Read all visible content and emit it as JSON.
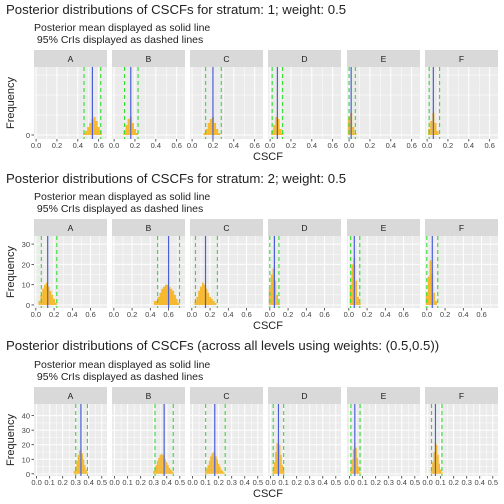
{
  "colors": {
    "panel_bg": "#ebebeb",
    "strip_bg": "#d9d9d9",
    "grid": "#ffffff",
    "bar": "#f5b82e",
    "mean_line": "#4a5fd6",
    "cri_line": "#33dd33",
    "text": "#222222",
    "tick_text": "#444444"
  },
  "chart_data": [
    {
      "type": "bar",
      "title": "Posterior distributions of CSCFs for stratum: 1; weight: 0.5",
      "subtitle_lines": [
        "Posterior mean displayed as solid line",
        " 95% CrIs displayed as dashed lines"
      ],
      "xlabel": "CSCF",
      "ylabel": "Frequency",
      "xlim": [
        -0.02,
        0.68
      ],
      "ylim": [
        -2,
        34
      ],
      "x_ticks": [
        "0.0",
        "0.2",
        "0.4",
        "0.6"
      ],
      "x_tick_values": [
        0.0,
        0.2,
        0.4,
        0.6
      ],
      "y_ticks": [
        "0"
      ],
      "y_tick_values": [
        0
      ],
      "y_minor_grid": [
        10,
        20,
        30
      ],
      "facets": [
        {
          "label": "A",
          "mean": 0.54,
          "cri": [
            0.46,
            0.62
          ],
          "bins": [
            [
              0.46,
              1
            ],
            [
              0.48,
              2
            ],
            [
              0.5,
              4
            ],
            [
              0.52,
              6
            ],
            [
              0.54,
              8
            ],
            [
              0.56,
              9
            ],
            [
              0.58,
              7
            ],
            [
              0.6,
              4
            ],
            [
              0.62,
              2
            ]
          ]
        },
        {
          "label": "B",
          "mean": 0.16,
          "cri": [
            0.1,
            0.23
          ],
          "bins": [
            [
              0.1,
              2
            ],
            [
              0.12,
              5
            ],
            [
              0.14,
              8
            ],
            [
              0.16,
              9
            ],
            [
              0.18,
              6
            ],
            [
              0.2,
              3
            ],
            [
              0.22,
              1
            ]
          ]
        },
        {
          "label": "C",
          "mean": 0.2,
          "cri": [
            0.13,
            0.28
          ],
          "bins": [
            [
              0.12,
              1
            ],
            [
              0.14,
              3
            ],
            [
              0.16,
              6
            ],
            [
              0.18,
              8
            ],
            [
              0.2,
              9
            ],
            [
              0.22,
              6
            ],
            [
              0.24,
              3
            ],
            [
              0.26,
              1
            ]
          ]
        },
        {
          "label": "D",
          "mean": 0.07,
          "cri": [
            0.02,
            0.12
          ],
          "bins": [
            [
              0.02,
              2
            ],
            [
              0.04,
              5
            ],
            [
              0.06,
              9
            ],
            [
              0.08,
              8
            ],
            [
              0.1,
              3
            ],
            [
              0.12,
              1
            ]
          ]
        },
        {
          "label": "E",
          "mean": 0.02,
          "cri": [
            0.0,
            0.06
          ],
          "bins": [
            [
              0.0,
              9
            ],
            [
              0.02,
              11
            ],
            [
              0.04,
              4
            ],
            [
              0.06,
              1
            ]
          ]
        },
        {
          "label": "F",
          "mean": 0.06,
          "cri": [
            0.02,
            0.12
          ],
          "bins": [
            [
              0.02,
              3
            ],
            [
              0.04,
              7
            ],
            [
              0.06,
              11
            ],
            [
              0.08,
              6
            ],
            [
              0.1,
              2
            ]
          ]
        }
      ]
    },
    {
      "type": "bar",
      "title": "Posterior distributions of CSCFs for stratum: 2; weight: 0.5",
      "subtitle_lines": [
        "Posterior mean displayed as solid line",
        " 95% CrIs displayed as dashed lines"
      ],
      "xlabel": "CSCF",
      "ylabel": "Frequency",
      "xlim": [
        -0.02,
        0.78
      ],
      "ylim": [
        -1.5,
        34
      ],
      "x_ticks": [
        "0.0",
        "0.2",
        "0.4",
        "0.6"
      ],
      "x_tick_values": [
        0.0,
        0.2,
        0.4,
        0.6
      ],
      "y_ticks": [
        "0",
        "10",
        "20",
        "30"
      ],
      "y_tick_values": [
        0,
        10,
        20,
        30
      ],
      "y_minor_grid": [],
      "facets": [
        {
          "label": "A",
          "mean": 0.13,
          "cri": [
            0.06,
            0.23
          ],
          "bins": [
            [
              0.04,
              2
            ],
            [
              0.06,
              5
            ],
            [
              0.08,
              8
            ],
            [
              0.1,
              10
            ],
            [
              0.12,
              11
            ],
            [
              0.14,
              9
            ],
            [
              0.16,
              7
            ],
            [
              0.18,
              5
            ],
            [
              0.2,
              3
            ],
            [
              0.22,
              1
            ]
          ]
        },
        {
          "label": "B",
          "mean": 0.6,
          "cri": [
            0.48,
            0.72
          ],
          "bins": [
            [
              0.46,
              2
            ],
            [
              0.5,
              4
            ],
            [
              0.52,
              6
            ],
            [
              0.54,
              8
            ],
            [
              0.56,
              9
            ],
            [
              0.58,
              10
            ],
            [
              0.6,
              9
            ],
            [
              0.62,
              8
            ],
            [
              0.64,
              7
            ],
            [
              0.66,
              5
            ],
            [
              0.68,
              3
            ],
            [
              0.7,
              1
            ]
          ]
        },
        {
          "label": "C",
          "mean": 0.15,
          "cri": [
            0.04,
            0.28
          ],
          "bins": [
            [
              0.04,
              2
            ],
            [
              0.06,
              4
            ],
            [
              0.08,
              7
            ],
            [
              0.1,
              9
            ],
            [
              0.12,
              11
            ],
            [
              0.14,
              10
            ],
            [
              0.16,
              8
            ],
            [
              0.18,
              6
            ],
            [
              0.2,
              4
            ],
            [
              0.22,
              3
            ],
            [
              0.24,
              2
            ],
            [
              0.26,
              1
            ]
          ]
        },
        {
          "label": "D",
          "mean": 0.05,
          "cri": [
            0.0,
            0.1
          ],
          "bins": [
            [
              0.0,
              8
            ],
            [
              0.02,
              15
            ],
            [
              0.04,
              18
            ],
            [
              0.06,
              12
            ],
            [
              0.08,
              5
            ],
            [
              0.1,
              1
            ]
          ]
        },
        {
          "label": "E",
          "mean": 0.06,
          "cri": [
            0.02,
            0.12
          ],
          "bins": [
            [
              0.02,
              10
            ],
            [
              0.04,
              20
            ],
            [
              0.06,
              23
            ],
            [
              0.08,
              12
            ],
            [
              0.1,
              4
            ],
            [
              0.12,
              1
            ]
          ]
        },
        {
          "label": "F",
          "mean": 0.06,
          "cri": [
            0.0,
            0.12
          ],
          "bins": [
            [
              0.0,
              6
            ],
            [
              0.02,
              14
            ],
            [
              0.04,
              22
            ],
            [
              0.06,
              15
            ],
            [
              0.08,
              6
            ],
            [
              0.1,
              2
            ]
          ]
        }
      ]
    },
    {
      "type": "bar",
      "title": "Posterior distributions of CSCFs (across all levels using weights: (0.5,0.5))",
      "subtitle_lines": [
        "Posterior mean displayed as solid line",
        " 95% CrIs displayed as dashed lines"
      ],
      "xlabel": "CSCF",
      "ylabel": "Frequency",
      "xlim": [
        -0.02,
        0.54
      ],
      "ylim": [
        -1.5,
        48
      ],
      "x_ticks": [
        "0.0",
        "0.1",
        "0.2",
        "0.3",
        "0.4",
        "0.5"
      ],
      "x_tick_values": [
        0.0,
        0.1,
        0.2,
        0.3,
        0.4,
        0.5
      ],
      "y_ticks": [
        "0",
        "10",
        "20",
        "30",
        "40"
      ],
      "y_tick_values": [
        0,
        10,
        20,
        30,
        40
      ],
      "y_minor_grid": [],
      "facets": [
        {
          "label": "A",
          "mean": 0.34,
          "cri": [
            0.3,
            0.39
          ],
          "bins": [
            [
              0.29,
              2
            ],
            [
              0.3,
              5
            ],
            [
              0.31,
              9
            ],
            [
              0.32,
              13
            ],
            [
              0.33,
              16
            ],
            [
              0.34,
              17
            ],
            [
              0.35,
              14
            ],
            [
              0.36,
              10
            ],
            [
              0.37,
              6
            ],
            [
              0.38,
              3
            ],
            [
              0.39,
              1
            ]
          ]
        },
        {
          "label": "B",
          "mean": 0.38,
          "cri": [
            0.31,
            0.45
          ],
          "bins": [
            [
              0.3,
              2
            ],
            [
              0.31,
              4
            ],
            [
              0.32,
              6
            ],
            [
              0.33,
              9
            ],
            [
              0.34,
              11
            ],
            [
              0.35,
              13
            ],
            [
              0.36,
              14
            ],
            [
              0.37,
              13
            ],
            [
              0.38,
              12
            ],
            [
              0.39,
              10
            ],
            [
              0.4,
              8
            ],
            [
              0.41,
              6
            ],
            [
              0.42,
              4
            ],
            [
              0.43,
              3
            ],
            [
              0.44,
              2
            ],
            [
              0.45,
              1
            ]
          ]
        },
        {
          "label": "C",
          "mean": 0.17,
          "cri": [
            0.1,
            0.25
          ],
          "bins": [
            [
              0.1,
              2
            ],
            [
              0.11,
              4
            ],
            [
              0.12,
              6
            ],
            [
              0.13,
              9
            ],
            [
              0.14,
              12
            ],
            [
              0.15,
              14
            ],
            [
              0.16,
              15
            ],
            [
              0.17,
              14
            ],
            [
              0.18,
              12
            ],
            [
              0.19,
              10
            ],
            [
              0.2,
              7
            ],
            [
              0.21,
              5
            ],
            [
              0.22,
              3
            ],
            [
              0.23,
              2
            ],
            [
              0.24,
              1
            ]
          ]
        },
        {
          "label": "D",
          "mean": 0.06,
          "cri": [
            0.02,
            0.1
          ],
          "bins": [
            [
              0.02,
              3
            ],
            [
              0.03,
              8
            ],
            [
              0.04,
              15
            ],
            [
              0.05,
              21
            ],
            [
              0.06,
              24
            ],
            [
              0.07,
              20
            ],
            [
              0.08,
              13
            ],
            [
              0.09,
              6
            ],
            [
              0.1,
              2
            ]
          ]
        },
        {
          "label": "E",
          "mean": 0.04,
          "cri": [
            0.01,
            0.08
          ],
          "bins": [
            [
              0.01,
              4
            ],
            [
              0.02,
              10
            ],
            [
              0.03,
              17
            ],
            [
              0.04,
              21
            ],
            [
              0.05,
              18
            ],
            [
              0.06,
              11
            ],
            [
              0.07,
              5
            ],
            [
              0.08,
              1
            ]
          ]
        },
        {
          "label": "F",
          "mean": 0.06,
          "cri": [
            0.03,
            0.11
          ],
          "bins": [
            [
              0.03,
              3
            ],
            [
              0.04,
              8
            ],
            [
              0.05,
              15
            ],
            [
              0.06,
              22
            ],
            [
              0.07,
              20
            ],
            [
              0.08,
              13
            ],
            [
              0.09,
              7
            ],
            [
              0.1,
              3
            ],
            [
              0.11,
              1
            ]
          ]
        }
      ]
    }
  ]
}
